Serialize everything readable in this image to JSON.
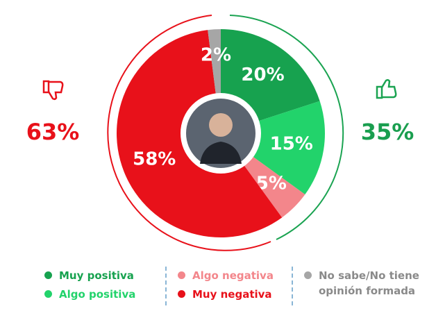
{
  "chart_data": {
    "type": "donut",
    "categories": [
      "Muy positiva",
      "Algo positiva",
      "Algo negativa",
      "Muy negativa",
      "No sabe/No tiene opinión formada"
    ],
    "values": [
      20,
      15,
      5,
      58,
      2
    ],
    "value_labels": [
      "20%",
      "15%",
      "5%",
      "58%",
      "2%"
    ],
    "colors": [
      "#17a24f",
      "#22d36b",
      "#f3868b",
      "#e8111a",
      "#a6a6a6"
    ],
    "annotations": [
      {
        "text": "63%",
        "color": "#e8111a"
      },
      {
        "text": "35%",
        "color": "#1a9e4f"
      }
    ]
  }
}
